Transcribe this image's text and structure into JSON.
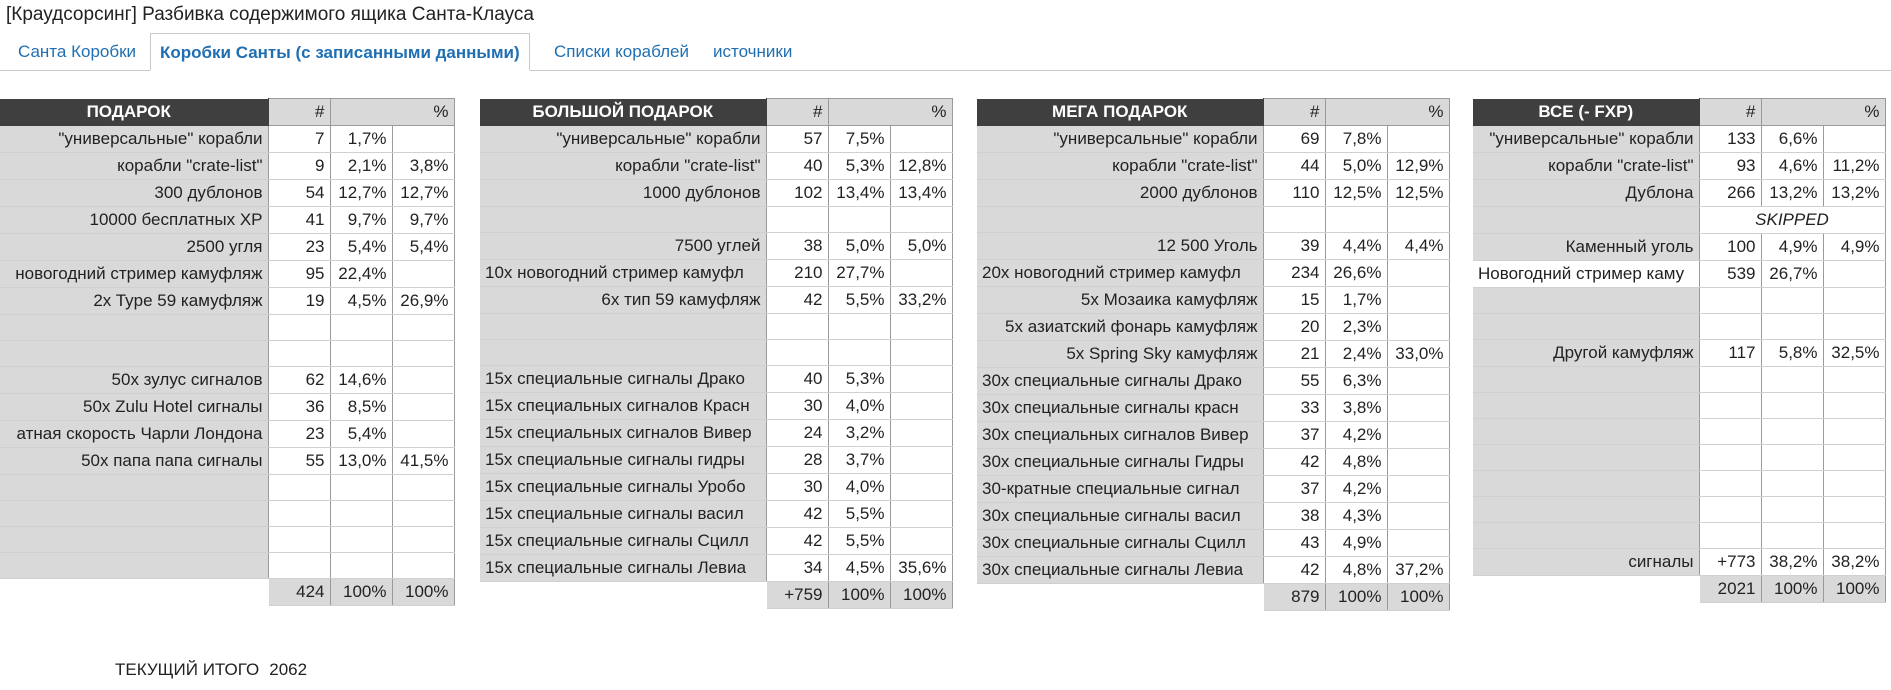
{
  "window": {
    "title": "[Краудсорсинг] Разбивка содержимого ящика Санта-Клауса"
  },
  "tabs": [
    {
      "label": "Санта Коробки"
    },
    {
      "label": "Коробки Санты (с записанными данными)"
    },
    {
      "label": "Списки кораблей"
    },
    {
      "label": "источники"
    }
  ],
  "tables": [
    {
      "header": "ПОДАРОК",
      "col_count": "#",
      "col_pct": "%",
      "rows": [
        {
          "label": "\"универсальные\" корабли",
          "count": "7",
          "pct": "1,7%",
          "sub": ""
        },
        {
          "label": "корабли \"crate-list\"",
          "count": "9",
          "pct": "2,1%",
          "sub": "3,8%"
        },
        {
          "label": "300 дублонов",
          "count": "54",
          "pct": "12,7%",
          "sub": "12,7%"
        },
        {
          "label": "10000 бесплатных XP",
          "count": "41",
          "pct": "9,7%",
          "sub": "9,7%"
        },
        {
          "label": "2500 угля",
          "count": "23",
          "pct": "5,4%",
          "sub": "5,4%"
        },
        {
          "label": "новогодний стример камуфляж",
          "count": "95",
          "pct": "22,4%",
          "sub": ""
        },
        {
          "label": "2x Type 59 камуфляж",
          "count": "19",
          "pct": "4,5%",
          "sub": "26,9%"
        },
        {
          "label": "",
          "count": "",
          "pct": "",
          "sub": ""
        },
        {
          "label": "",
          "count": "",
          "pct": "",
          "sub": ""
        },
        {
          "label": "50x зулус сигналов",
          "count": "62",
          "pct": "14,6%",
          "sub": ""
        },
        {
          "label": "50x Zulu Hotel сигналы",
          "count": "36",
          "pct": "8,5%",
          "sub": ""
        },
        {
          "label": "атная скорость Чарли Лондона",
          "count": "23",
          "pct": "5,4%",
          "sub": ""
        },
        {
          "label": "50x папа папа сигналы",
          "count": "55",
          "pct": "13,0%",
          "sub": "41,5%"
        },
        {
          "label": "",
          "count": "",
          "pct": "",
          "sub": ""
        },
        {
          "label": "",
          "count": "",
          "pct": "",
          "sub": ""
        },
        {
          "label": "",
          "count": "",
          "pct": "",
          "sub": ""
        },
        {
          "label": "",
          "count": "",
          "pct": "",
          "sub": ""
        }
      ],
      "total": {
        "count": "424",
        "pct": "100%",
        "sub": "100%"
      }
    },
    {
      "header": "БОЛЬШОЙ ПОДАРОК",
      "col_count": "#",
      "col_pct": "%",
      "rows": [
        {
          "label": "\"универсальные\" корабли",
          "count": "57",
          "pct": "7,5%",
          "sub": ""
        },
        {
          "label": "корабли \"crate-list\"",
          "count": "40",
          "pct": "5,3%",
          "sub": "12,8%"
        },
        {
          "label": "1000 дублонов",
          "count": "102",
          "pct": "13,4%",
          "sub": "13,4%"
        },
        {
          "label": "",
          "count": "",
          "pct": "",
          "sub": ""
        },
        {
          "label": "7500 углей",
          "count": "38",
          "pct": "5,0%",
          "sub": "5,0%"
        },
        {
          "label": "10x новогодний стример камуфл",
          "count": "210",
          "pct": "27,7%",
          "sub": ""
        },
        {
          "label": "6х тип 59 камуфляж",
          "count": "42",
          "pct": "5,5%",
          "sub": "33,2%"
        },
        {
          "label": "",
          "count": "",
          "pct": "",
          "sub": ""
        },
        {
          "label": "",
          "count": "",
          "pct": "",
          "sub": ""
        },
        {
          "label": "15x специальные сигналы Драко",
          "count": "40",
          "pct": "5,3%",
          "sub": ""
        },
        {
          "label": "15x специальных сигналов Красн",
          "count": "30",
          "pct": "4,0%",
          "sub": ""
        },
        {
          "label": "15x специальных сигналов Вивер",
          "count": "24",
          "pct": "3,2%",
          "sub": ""
        },
        {
          "label": "15x специальные сигналы гидры",
          "count": "28",
          "pct": "3,7%",
          "sub": ""
        },
        {
          "label": "15x специальные сигналы Уробо",
          "count": "30",
          "pct": "4,0%",
          "sub": ""
        },
        {
          "label": "15x специальные сигналы васил",
          "count": "42",
          "pct": "5,5%",
          "sub": ""
        },
        {
          "label": "15x специальные сигналы Сцилл",
          "count": "42",
          "pct": "5,5%",
          "sub": ""
        },
        {
          "label": "15x специальные сигналы Левиа",
          "count": "34",
          "pct": "4,5%",
          "sub": "35,6%"
        }
      ],
      "total": {
        "count": "+759",
        "pct": "100%",
        "sub": "100%"
      }
    },
    {
      "header": "МЕГА ПОДАРОК",
      "col_count": "#",
      "col_pct": "%",
      "rows": [
        {
          "label": "\"универсальные\" корабли",
          "count": "69",
          "pct": "7,8%",
          "sub": ""
        },
        {
          "label": "корабли \"crate-list\"",
          "count": "44",
          "pct": "5,0%",
          "sub": "12,9%"
        },
        {
          "label": "2000 дублонов",
          "count": "110",
          "pct": "12,5%",
          "sub": "12,5%"
        },
        {
          "label": "",
          "count": "",
          "pct": "",
          "sub": ""
        },
        {
          "label": "12 500 Уголь",
          "count": "39",
          "pct": "4,4%",
          "sub": "4,4%"
        },
        {
          "label": "20x новогодний стример камуфл",
          "count": "234",
          "pct": "26,6%",
          "sub": ""
        },
        {
          "label": "5x Мозаика камуфляж",
          "count": "15",
          "pct": "1,7%",
          "sub": ""
        },
        {
          "label": "5x азиатский фонарь камуфляж",
          "count": "20",
          "pct": "2,3%",
          "sub": ""
        },
        {
          "label": "5x Spring Sky камуфляж",
          "count": "21",
          "pct": "2,4%",
          "sub": "33,0%"
        },
        {
          "label": "30x специальные сигналы Драко",
          "count": "55",
          "pct": "6,3%",
          "sub": ""
        },
        {
          "label": "30x специальные сигналы красн",
          "count": "33",
          "pct": "3,8%",
          "sub": ""
        },
        {
          "label": "30x специальных сигналов Вивер",
          "count": "37",
          "pct": "4,2%",
          "sub": ""
        },
        {
          "label": "30x специальные сигналы Гидры",
          "count": "42",
          "pct": "4,8%",
          "sub": ""
        },
        {
          "label": "30-кратные специальные сигнал",
          "count": "37",
          "pct": "4,2%",
          "sub": ""
        },
        {
          "label": "30x специальные сигналы васил",
          "count": "38",
          "pct": "4,3%",
          "sub": ""
        },
        {
          "label": "30x специальные сигналы Сцилл",
          "count": "43",
          "pct": "4,9%",
          "sub": ""
        },
        {
          "label": "30x специальные сигналы Левиа",
          "count": "42",
          "pct": "4,8%",
          "sub": "37,2%"
        }
      ],
      "total": {
        "count": "879",
        "pct": "100%",
        "sub": "100%"
      }
    },
    {
      "header": "ВСЕ (- FXP)",
      "col_count": "#",
      "col_pct": "%",
      "rows": [
        {
          "label": "\"универсальные\" корабли",
          "count": "133",
          "pct": "6,6%",
          "sub": ""
        },
        {
          "label": "корабли \"crate-list\"",
          "count": "93",
          "pct": "4,6%",
          "sub": "11,2%"
        },
        {
          "label": "Дублона",
          "count": "266",
          "pct": "13,2%",
          "sub": "13,2%"
        },
        {
          "label": "",
          "count": "",
          "pct": "",
          "sub": "",
          "skipped": "SKIPPED"
        },
        {
          "label": "Каменный уголь",
          "count": "100",
          "pct": "4,9%",
          "sub": "4,9%"
        },
        {
          "label": "Новогодний стример каму",
          "count": "539",
          "pct": "26,7%",
          "sub": ""
        },
        {
          "label": "",
          "count": "",
          "pct": "",
          "sub": ""
        },
        {
          "label": "",
          "count": "",
          "pct": "",
          "sub": ""
        },
        {
          "label": "Другой камуфляж",
          "count": "117",
          "pct": "5,8%",
          "sub": "32,5%"
        },
        {
          "label": "",
          "count": "",
          "pct": "",
          "sub": ""
        },
        {
          "label": "",
          "count": "",
          "pct": "",
          "sub": ""
        },
        {
          "label": "",
          "count": "",
          "pct": "",
          "sub": ""
        },
        {
          "label": "",
          "count": "",
          "pct": "",
          "sub": ""
        },
        {
          "label": "",
          "count": "",
          "pct": "",
          "sub": ""
        },
        {
          "label": "",
          "count": "",
          "pct": "",
          "sub": ""
        },
        {
          "label": "",
          "count": "",
          "pct": "",
          "sub": ""
        },
        {
          "label": "сигналы",
          "count": "+773",
          "pct": "38,2%",
          "sub": "38,2%"
        }
      ],
      "total": {
        "count": "2021",
        "pct": "100%",
        "sub": "100%"
      }
    }
  ],
  "footer": {
    "label": "ТЕКУЩИЙ ИТОГО",
    "value": "2062"
  }
}
